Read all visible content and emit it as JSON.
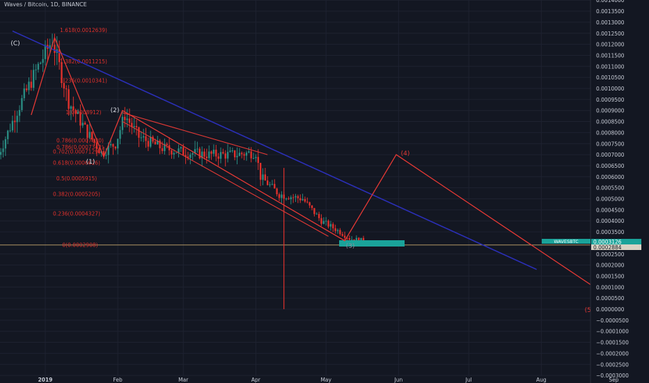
{
  "header": {
    "symbol_title": "Waves / Bitcoin, 1D, BINANCE"
  },
  "colors": {
    "background": "#131722",
    "grid": "#1e2230",
    "fib": "#e0312c",
    "wave": "#e53935",
    "trend": "#2b2fb8",
    "up": "#2a8c82",
    "down": "#e0312c",
    "price_line": "#c9a96e",
    "box": "#1aa39a",
    "axis_text": "#c8ccd6"
  },
  "chart_data": {
    "type": "candlestick",
    "xaxis": {
      "labels": [
        "2019",
        "Feb",
        "Mar",
        "Apr",
        "May",
        "Jun",
        "Jul",
        "Aug",
        "Sep"
      ]
    },
    "yaxis": {
      "ticks": [
        "0.0014000",
        "0.0013500",
        "0.0013000",
        "0.0012500",
        "0.0012000",
        "0.0011500",
        "0.0011000",
        "0.0010500",
        "0.0010000",
        "0.0009500",
        "0.0009000",
        "0.0008500",
        "0.0008000",
        "0.0007500",
        "0.0007000",
        "0.0006500",
        "0.0006000",
        "0.0005500",
        "0.0005000",
        "0.0004500",
        "0.0004000",
        "0.0003500",
        "0.0002500",
        "0.0002000",
        "0.0001500",
        "0.0001000",
        "0.0000500",
        "0.0000000",
        "−0.0000500",
        "−0.0001000",
        "−0.0001500",
        "−0.0002000",
        "−0.0002500",
        "−0.0003000"
      ],
      "range": [
        -0.0003,
        0.0014
      ]
    },
    "price_tags": [
      {
        "label": "WAVESBTC",
        "value": "0.0003126"
      },
      {
        "value": "0.0002884"
      }
    ],
    "fib_levels": [
      {
        "label": "1.618(0.0012639)",
        "value": 0.0012639
      },
      {
        "label": "1.382(0.0011215)",
        "value": 0.0011215
      },
      {
        "label": "1.236(0.0010341)",
        "value": 0.0010341
      },
      {
        "label": "1(0.0008912)",
        "value": 0.0008912
      },
      {
        "label": "0.786(0.0007630)",
        "value": 0.000763
      },
      {
        "label": "0.786(0.0007342)",
        "value": 0.0007342
      },
      {
        "label": "0.702(0.0007129)",
        "value": 0.0007129
      },
      {
        "label": "0.618(0.0006626)",
        "value": 0.0006626
      },
      {
        "label": "0.5(0.0005915)",
        "value": 0.0005915
      },
      {
        "label": "0.382(0.0005205)",
        "value": 0.0005205
      },
      {
        "label": "0.236(0.0004327)",
        "value": 0.0004327
      },
      {
        "label": "0(0.0002908)",
        "value": 0.0002908
      }
    ],
    "wave_labels": [
      "(C)",
      "(1)",
      "(2)",
      "(3)",
      "(4)",
      "(5)"
    ],
    "wave_path": [
      {
        "day": -6,
        "v": 0.00088
      },
      {
        "day": 4,
        "v": 0.00123
      },
      {
        "day": 25,
        "v": 0.00069
      },
      {
        "day": 33,
        "v": 0.0009
      },
      {
        "day": 128,
        "v": 0.00031
      },
      {
        "day": 150,
        "v": 0.0007
      },
      {
        "day": 253,
        "v": -3e-05
      }
    ],
    "channel_lines": [
      {
        "from": {
          "day": 33,
          "v": 0.00089
        },
        "to": {
          "day": 95,
          "v": 0.0007
        }
      },
      {
        "from": {
          "day": 33,
          "v": 0.00085
        },
        "to": {
          "day": 121,
          "v": 0.00033
        }
      }
    ],
    "trendline": {
      "from": {
        "day": -14,
        "v": 0.00126
      },
      "to": {
        "day": 210,
        "v": 0.00018
      }
    },
    "spike": {
      "day": 102,
      "high": 0.00064,
      "low": 0.0
    }
  }
}
